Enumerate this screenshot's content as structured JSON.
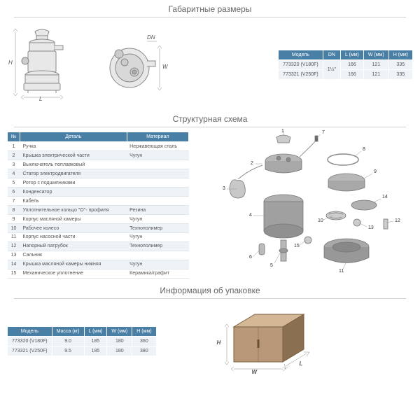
{
  "titles": {
    "dimensions": "Габаритные размеры",
    "structure": "Структурная схема",
    "packaging": "Информация об упаковке"
  },
  "dim_table": {
    "headers": {
      "model": "Модель",
      "dn": "DN",
      "l": "L (мм)",
      "w": "W (мм)",
      "h": "H (мм)"
    },
    "rows": [
      {
        "model": "773320 (V180F)",
        "dn": "1½\"",
        "l": "166",
        "w": "121",
        "h": "335"
      },
      {
        "model": "773321 (V250F)",
        "dn": "1½\"",
        "l": "166",
        "w": "121",
        "h": "335"
      }
    ],
    "dn_rowspan": "1½\"",
    "header_bg": "#4a7fa5",
    "cell_bg": "#eef3f7"
  },
  "parts_table": {
    "headers": {
      "n": "№",
      "part": "Деталь",
      "material": "Материал"
    },
    "rows": [
      {
        "n": "1",
        "part": "Ручка",
        "material": "Нержавеющая сталь"
      },
      {
        "n": "2",
        "part": "Крышка электрической части",
        "material": "Чугун"
      },
      {
        "n": "3",
        "part": "Выключатель поплавковый",
        "material": ""
      },
      {
        "n": "4",
        "part": "Статор электродвигателя",
        "material": ""
      },
      {
        "n": "5",
        "part": "Ротор с подшипниками",
        "material": ""
      },
      {
        "n": "6",
        "part": "Конденсатор",
        "material": ""
      },
      {
        "n": "7",
        "part": "Кабель",
        "material": ""
      },
      {
        "n": "8",
        "part": "Уплотнительное кольцо \"О\"- профиля",
        "material": "Резина"
      },
      {
        "n": "9",
        "part": "Корпус масляной камеры",
        "material": "Чугун"
      },
      {
        "n": "10",
        "part": "Рабочее колесо",
        "material": "Технополимер"
      },
      {
        "n": "11",
        "part": "Корпус насосной части",
        "material": "Чугун"
      },
      {
        "n": "12",
        "part": "Напорный патрубок",
        "material": "Технополимер"
      },
      {
        "n": "13",
        "part": "Сальник",
        "material": ""
      },
      {
        "n": "14",
        "part": "Крышка масляной камеры нижняя",
        "material": "Чугун"
      },
      {
        "n": "15",
        "part": "Механическое уплотнение",
        "material": "Керамика/графит"
      }
    ]
  },
  "pack_table": {
    "headers": {
      "model": "Модель",
      "mass": "Масса (кг)",
      "l": "L (мм)",
      "w": "W (мм)",
      "h": "H (мм)"
    },
    "rows": [
      {
        "model": "773320 (V180F)",
        "mass": "9.0",
        "l": "185",
        "w": "180",
        "h": "360"
      },
      {
        "model": "773321 (V250F)",
        "mass": "9.5",
        "l": "185",
        "w": "180",
        "h": "380"
      }
    ]
  },
  "dim_labels": {
    "h": "H",
    "l": "L",
    "w": "W",
    "dn": "DN"
  },
  "colors": {
    "header_bg": "#4a7fa5",
    "cell_bg": "#eef3f7",
    "divider": "#d0d0d0",
    "text": "#555555",
    "drawing": "#888888",
    "box_fill": "#b89878",
    "box_dark": "#8a6f50",
    "box_light": "#d4b896"
  }
}
